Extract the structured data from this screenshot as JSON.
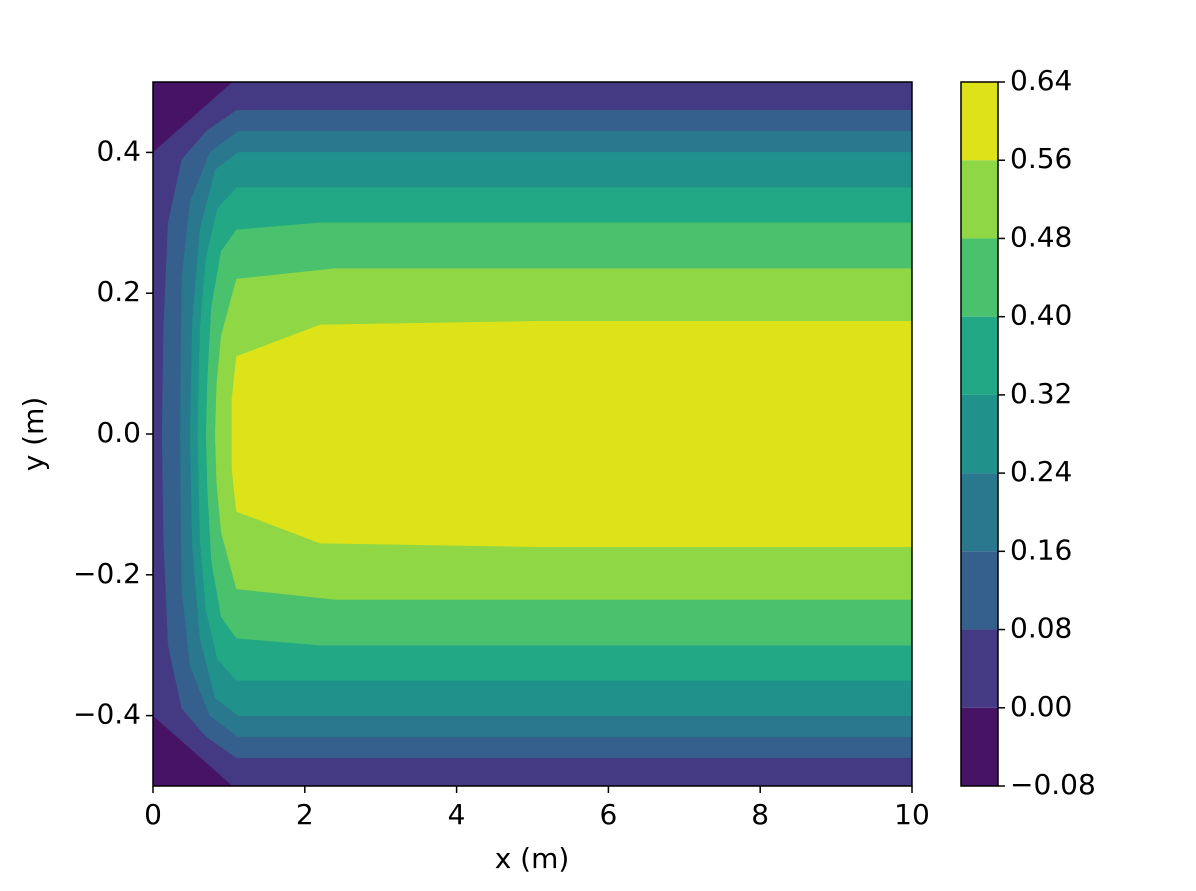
{
  "chart_data": {
    "type": "contour",
    "xlabel": "x (m)",
    "ylabel": "y (m)",
    "xlim": [
      0,
      10
    ],
    "xticks": [
      0,
      2,
      4,
      6,
      8,
      10
    ],
    "ylim": [
      -0.5,
      0.5
    ],
    "yticks": [
      {
        "value": -0.4,
        "label": "−0.4"
      },
      {
        "value": -0.2,
        "label": "−0.2"
      },
      {
        "value": 0,
        "label": "0.0"
      },
      0.2,
      0.4
    ],
    "levels": [
      {
        "value": -0.08,
        "label": "−0.08"
      },
      {
        "value": 0,
        "label": "0.00"
      },
      0.08,
      0.16,
      0.24,
      0.32,
      {
        "value": 0.4,
        "label": "0.40"
      },
      0.48,
      0.56,
      0.64
    ],
    "colors": [
      "#471365",
      "#443983",
      "#355f8d",
      "#2a788e",
      "#21918c",
      "#22a884",
      "#4ac16d",
      "#8fd744",
      "#dde318"
    ],
    "regions": [
      {
        "x": [
          0,
          1.05,
          10,
          10,
          1.05,
          0
        ],
        "y": [
          0.4,
          0.5,
          0.5,
          -0.5,
          -0.5,
          -0.4
        ]
      },
      {
        "x": [
          10,
          1.1,
          0.7,
          0.38,
          0.2,
          0.14,
          0.12,
          0.14,
          0.2,
          0.38,
          0.7,
          1.1,
          10
        ],
        "y": [
          0.46,
          0.46,
          0.43,
          0.39,
          0.3,
          0.15,
          0,
          -0.15,
          -0.3,
          -0.39,
          -0.43,
          -0.46,
          -0.46
        ]
      },
      {
        "x": [
          10,
          1.12,
          0.75,
          0.49,
          0.38,
          0.36,
          0.38,
          0.49,
          0.75,
          1.12,
          10
        ],
        "y": [
          0.43,
          0.43,
          0.4,
          0.33,
          0.22,
          0,
          -0.22,
          -0.33,
          -0.4,
          -0.43,
          -0.43
        ]
      },
      {
        "x": [
          10,
          1.12,
          0.82,
          0.62,
          0.52,
          0.49,
          0.52,
          0.62,
          0.82,
          1.12,
          10
        ],
        "y": [
          0.4,
          0.4,
          0.375,
          0.29,
          0.16,
          0,
          -0.16,
          -0.29,
          -0.375,
          -0.4,
          -0.4
        ]
      },
      {
        "x": [
          10,
          1.1,
          0.85,
          0.7,
          0.62,
          0.59,
          0.62,
          0.7,
          0.85,
          1.1,
          10
        ],
        "y": [
          0.35,
          0.35,
          0.32,
          0.25,
          0.15,
          0,
          -0.15,
          -0.25,
          -0.32,
          -0.35,
          -0.35
        ]
      },
      {
        "x": [
          10,
          2.2,
          1.1,
          0.9,
          0.77,
          0.72,
          0.7,
          0.72,
          0.77,
          0.9,
          1.1,
          2.2,
          10
        ],
        "y": [
          0.3,
          0.3,
          0.29,
          0.26,
          0.18,
          0.08,
          0,
          -0.08,
          -0.18,
          -0.26,
          -0.29,
          -0.3,
          -0.3
        ]
      },
      {
        "x": [
          10,
          2.4,
          1.1,
          0.9,
          0.84,
          0.82,
          0.84,
          0.9,
          1.1,
          2.4,
          10
        ],
        "y": [
          0.235,
          0.235,
          0.22,
          0.14,
          0.07,
          0,
          -0.07,
          -0.14,
          -0.22,
          -0.235,
          -0.235
        ]
      },
      {
        "x": [
          10,
          5,
          2.2,
          1.1,
          1.04,
          1.04,
          1.04,
          1.1,
          2.2,
          5,
          10
        ],
        "y": [
          0.16,
          0.16,
          0.155,
          0.11,
          0.05,
          0,
          -0.05,
          -0.11,
          -0.155,
          -0.16,
          -0.16
        ]
      }
    ]
  }
}
